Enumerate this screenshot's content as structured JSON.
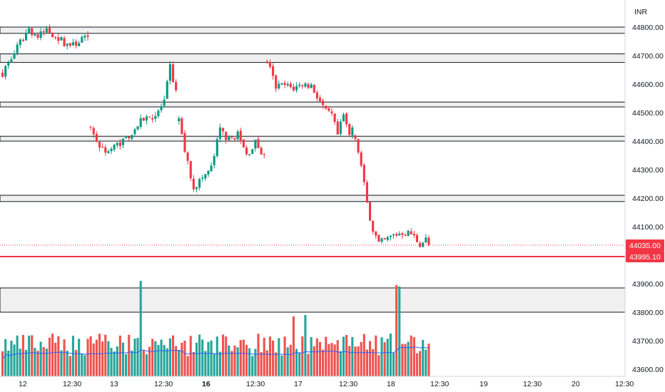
{
  "chart_data": {
    "type": "candlestick",
    "currency": "INR",
    "ylim": [
      43570,
      44840
    ],
    "y_ticks": [
      44800,
      44700,
      44600,
      44500,
      44400,
      44300,
      44200,
      44100,
      43900,
      43800,
      43700,
      43600
    ],
    "x_ticks": [
      "12",
      "12:30",
      "13",
      "12:30",
      "16",
      "12:30",
      "17",
      "12:30",
      "18",
      "12:30",
      "19",
      "12:30",
      "20",
      "12:30"
    ],
    "x_ticks_bold": [
      "16"
    ],
    "price_tags": [
      {
        "label": "44035.00",
        "value": 44035.0,
        "color": "#f23645",
        "style": "dotted"
      },
      {
        "label": "43995.10",
        "value": 43995.1,
        "color": "#f23645",
        "style": "solid"
      }
    ],
    "colors": {
      "up": "#089981",
      "down": "#f23645",
      "volume_up": "#26a69a",
      "volume_down": "#ef5350",
      "volume_ma": "#2962ff",
      "zone_fill": "#f0f0f0",
      "zone_stroke": "#131722"
    },
    "zones": [
      {
        "from": 44778,
        "to": 44800
      },
      {
        "from": 44676,
        "to": 44706
      },
      {
        "from": 44520,
        "to": 44537
      },
      {
        "from": 44400,
        "to": 44417
      },
      {
        "from": 44188,
        "to": 44210
      },
      {
        "from": 43800,
        "to": 43885
      }
    ],
    "sessions": [
      {
        "name": "12",
        "candles": 30,
        "start": 44640,
        "path": [
          [
            0,
            44640
          ],
          [
            3,
            44690
          ],
          [
            6,
            44745
          ],
          [
            9,
            44795
          ],
          [
            12,
            44765
          ],
          [
            15,
            44790
          ],
          [
            18,
            44770
          ],
          [
            21,
            44745
          ],
          [
            24,
            44735
          ],
          [
            27,
            44760
          ],
          [
            29,
            44755
          ]
        ]
      },
      {
        "name": "13",
        "candles": 30,
        "start": 44450,
        "path": [
          [
            0,
            44450
          ],
          [
            3,
            44380
          ],
          [
            6,
            44365
          ],
          [
            10,
            44395
          ],
          [
            14,
            44430
          ],
          [
            18,
            44480
          ],
          [
            22,
            44490
          ],
          [
            25,
            44535
          ],
          [
            27,
            44660
          ],
          [
            29,
            44570
          ]
        ]
      },
      {
        "name": "16",
        "candles": 30,
        "start": 44470,
        "path": [
          [
            0,
            44470
          ],
          [
            3,
            44320
          ],
          [
            5,
            44240
          ],
          [
            8,
            44270
          ],
          [
            11,
            44305
          ],
          [
            14,
            44440
          ],
          [
            17,
            44405
          ],
          [
            20,
            44425
          ],
          [
            23,
            44350
          ],
          [
            26,
            44395
          ],
          [
            29,
            44345
          ]
        ]
      },
      {
        "name": "17",
        "candles": 30,
        "start": 44680,
        "path": [
          [
            0,
            44680
          ],
          [
            3,
            44590
          ],
          [
            6,
            44595
          ],
          [
            9,
            44585
          ],
          [
            12,
            44600
          ],
          [
            15,
            44595
          ],
          [
            18,
            44540
          ],
          [
            20,
            44500
          ],
          [
            22,
            44490
          ],
          [
            24,
            44420
          ],
          [
            26,
            44490
          ],
          [
            28,
            44420
          ],
          [
            29,
            44450
          ]
        ]
      },
      {
        "name": "18",
        "candles": 30,
        "start": 44420,
        "path": [
          [
            0,
            44420
          ],
          [
            2,
            44310
          ],
          [
            4,
            44180
          ],
          [
            6,
            44090
          ],
          [
            8,
            44040
          ],
          [
            10,
            44050
          ],
          [
            13,
            44070
          ],
          [
            16,
            44080
          ],
          [
            19,
            44075
          ],
          [
            22,
            44040
          ],
          [
            24,
            44055
          ],
          [
            25,
            44035
          ]
        ]
      }
    ],
    "volume_spikes": [
      {
        "candle": 47,
        "value": 43910
      },
      {
        "candle": 134,
        "value": 43895
      },
      {
        "candle": 135,
        "value": 43890
      },
      {
        "candle": 103,
        "value": 43790
      },
      {
        "candle": 99,
        "value": 43785
      }
    ],
    "volume_axis": {
      "base": 43575
    }
  }
}
